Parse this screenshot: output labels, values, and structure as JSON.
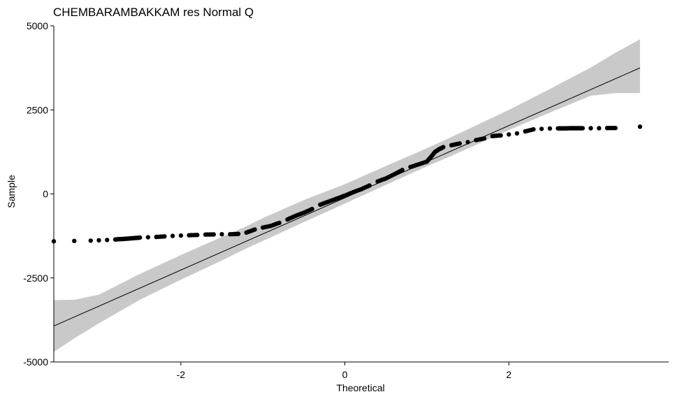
{
  "chart_data": {
    "type": "scatter",
    "title": "CHEMBARAMBAKKAM res Normal Q",
    "xlabel": "Theoretical",
    "ylabel": "Sample",
    "xlim": [
      -3.55,
      3.95
    ],
    "ylim": [
      -5000,
      5000
    ],
    "x_ticks": [
      -2,
      0,
      2
    ],
    "x_tick_labels": [
      "-2",
      "0",
      "2"
    ],
    "y_ticks": [
      -5000,
      -2500,
      0,
      2500,
      5000
    ],
    "y_tick_labels": [
      "-5000",
      "-2500",
      "0",
      "2500",
      "5000"
    ],
    "grid": false,
    "point_color": "#000000",
    "line_color": "#000000",
    "band_color": "#c9c9c9",
    "reference_line": {
      "x": [
        -3.55,
        3.6
      ],
      "y": [
        -3930,
        3750
      ]
    },
    "confidence_band": {
      "x": [
        -3.55,
        -3.3,
        -3.0,
        -2.5,
        -2.0,
        -1.5,
        -1.2,
        -1.0,
        -0.5,
        0.0,
        0.5,
        1.0,
        1.2,
        1.5,
        2.0,
        2.5,
        3.0,
        3.3,
        3.6
      ],
      "lower": [
        -4700,
        -4300,
        -3850,
        -3150,
        -2550,
        -1980,
        -1620,
        -1400,
        -840,
        -290,
        270,
        820,
        1030,
        1350,
        1900,
        2420,
        2920,
        3000,
        3000
      ],
      "upper": [
        -3160,
        -3150,
        -3000,
        -2380,
        -1820,
        -1280,
        -960,
        -720,
        -180,
        290,
        830,
        1360,
        1580,
        1920,
        2500,
        3120,
        3760,
        4200,
        4600
      ]
    },
    "points": {
      "x": [
        -3.55,
        -3.3,
        -3.1,
        -3.0,
        -2.9,
        -2.8,
        -2.75,
        -2.7,
        -2.65,
        -2.6,
        -2.55,
        -2.5,
        -2.4,
        -2.3,
        -2.2,
        -2.1,
        -2.0,
        -1.9,
        -1.8,
        -1.7,
        -1.6,
        -1.5,
        -1.4,
        -1.3,
        -1.2,
        -1.1,
        -1.0,
        -0.9,
        -0.8,
        -0.7,
        -0.6,
        -0.5,
        -0.4,
        -0.3,
        -0.2,
        -0.1,
        0.0,
        0.1,
        0.2,
        0.3,
        0.4,
        0.5,
        0.6,
        0.7,
        0.8,
        0.9,
        1.0,
        1.05,
        1.1,
        1.15,
        1.2,
        1.3,
        1.4,
        1.5,
        1.6,
        1.7,
        1.8,
        1.9,
        2.0,
        2.1,
        2.2,
        2.3,
        2.4,
        2.5,
        2.6,
        2.65,
        2.7,
        2.75,
        2.8,
        2.85,
        2.9,
        3.0,
        3.1,
        3.2,
        3.3,
        3.6
      ],
      "y": [
        -1410,
        -1400,
        -1390,
        -1380,
        -1370,
        -1355,
        -1345,
        -1340,
        -1330,
        -1320,
        -1310,
        -1300,
        -1290,
        -1280,
        -1265,
        -1250,
        -1240,
        -1230,
        -1220,
        -1210,
        -1205,
        -1200,
        -1200,
        -1190,
        -1150,
        -1060,
        -1000,
        -950,
        -860,
        -760,
        -650,
        -560,
        -450,
        -320,
        -230,
        -140,
        -50,
        50,
        140,
        250,
        370,
        460,
        580,
        710,
        800,
        880,
        960,
        1100,
        1250,
        1330,
        1390,
        1450,
        1500,
        1540,
        1600,
        1650,
        1720,
        1740,
        1770,
        1800,
        1860,
        1920,
        1935,
        1945,
        1950,
        1950,
        1950,
        1955,
        1955,
        1955,
        1955,
        1955,
        1955,
        1960,
        1960,
        2000
      ]
    }
  }
}
